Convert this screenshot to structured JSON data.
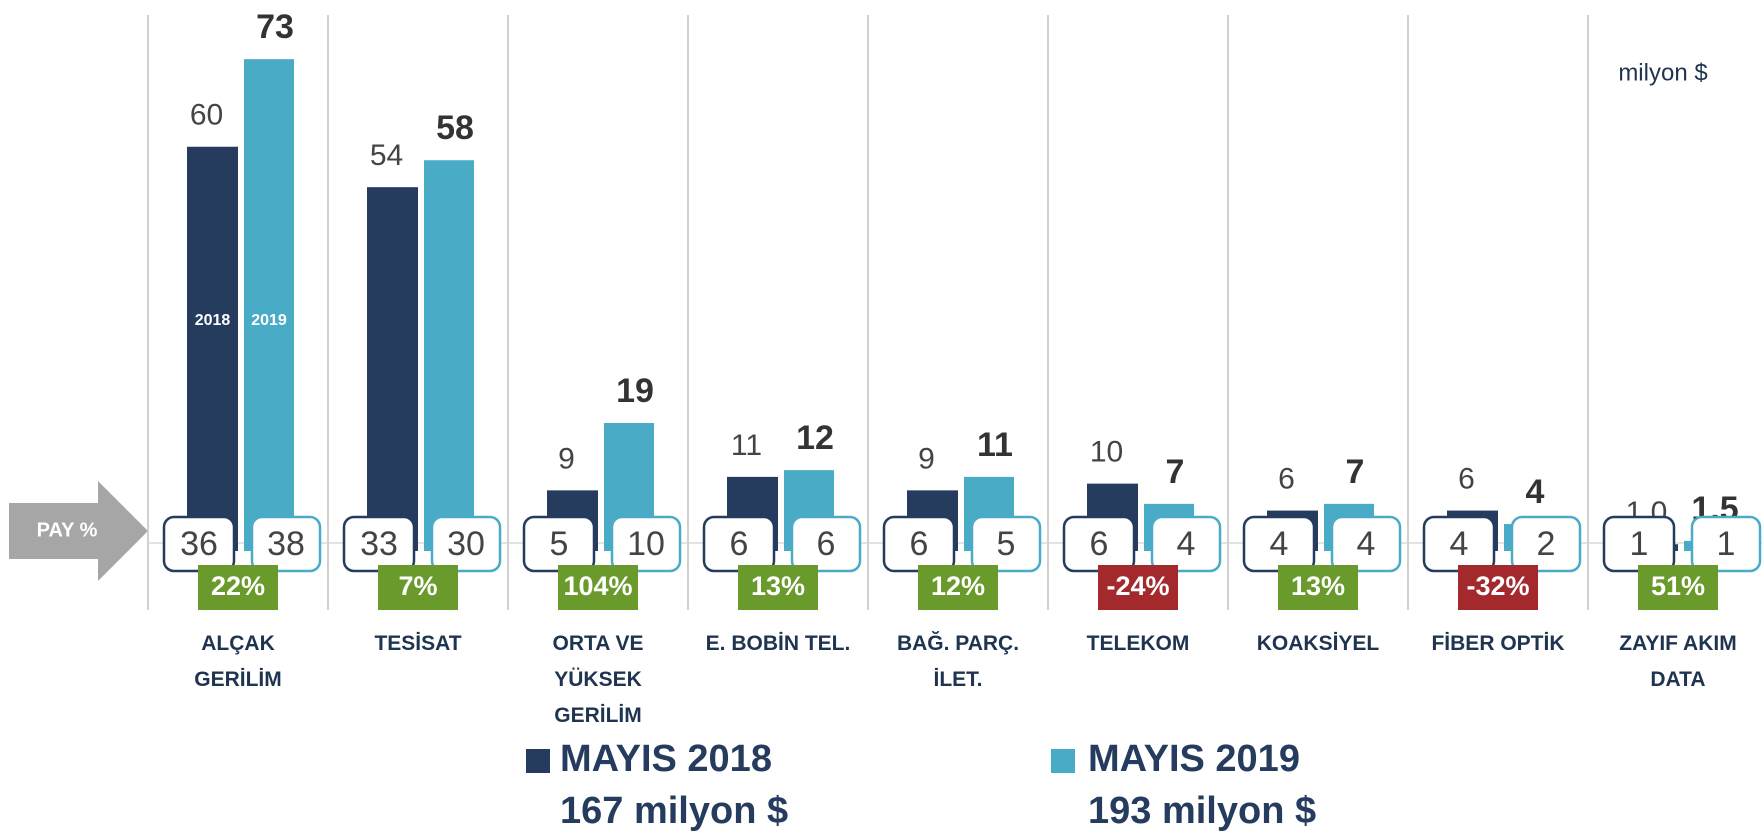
{
  "chart_data": {
    "type": "bar",
    "unit_label": "milyon $",
    "share_label": "PAY %",
    "categories": [
      "ALÇAK\nGERİLİM",
      "TESİSAT",
      "ORTA VE\nYÜKSEK\nGERİLİM",
      "E. BOBİN TEL.",
      "BAĞ. PARÇ.\nİLET.",
      "TELEKOM",
      "KOAKSİYEL",
      "FİBER OPTİK",
      "ZAYIF AKIM\nDATA"
    ],
    "series": [
      {
        "name": "MAYIS 2018",
        "bar_label": "2018",
        "total": "167 milyon $",
        "color": "#253c5e",
        "values": [
          60,
          54,
          9,
          11,
          9,
          10,
          6,
          6,
          1.0
        ],
        "value_labels": [
          "60",
          "54",
          "9",
          "11",
          "9",
          "10",
          "6",
          "6",
          "1,0"
        ],
        "shares": [
          36,
          33,
          5,
          6,
          6,
          6,
          4,
          4,
          1
        ]
      },
      {
        "name": "MAYIS 2019",
        "bar_label": "2019",
        "total": "193 milyon $",
        "color": "#4aabc7",
        "values": [
          73,
          58,
          19,
          12,
          11,
          7,
          7,
          4,
          1.5
        ],
        "value_labels": [
          "73",
          "58",
          "19",
          "12",
          "11",
          "7",
          "7",
          "4",
          "1,5"
        ],
        "shares": [
          38,
          30,
          10,
          6,
          5,
          4,
          4,
          2,
          1
        ]
      }
    ],
    "change": {
      "values": [
        22,
        7,
        104,
        13,
        12,
        -24,
        13,
        -32,
        51
      ],
      "value_labels": [
        "22%",
        "7%",
        "104%",
        "13%",
        "12%",
        "-24%",
        "13%",
        "-32%",
        "51%"
      ],
      "positive_color": "#6a9a2c",
      "negative_color": "#a3292c"
    },
    "ylim": [
      0,
      80
    ]
  }
}
